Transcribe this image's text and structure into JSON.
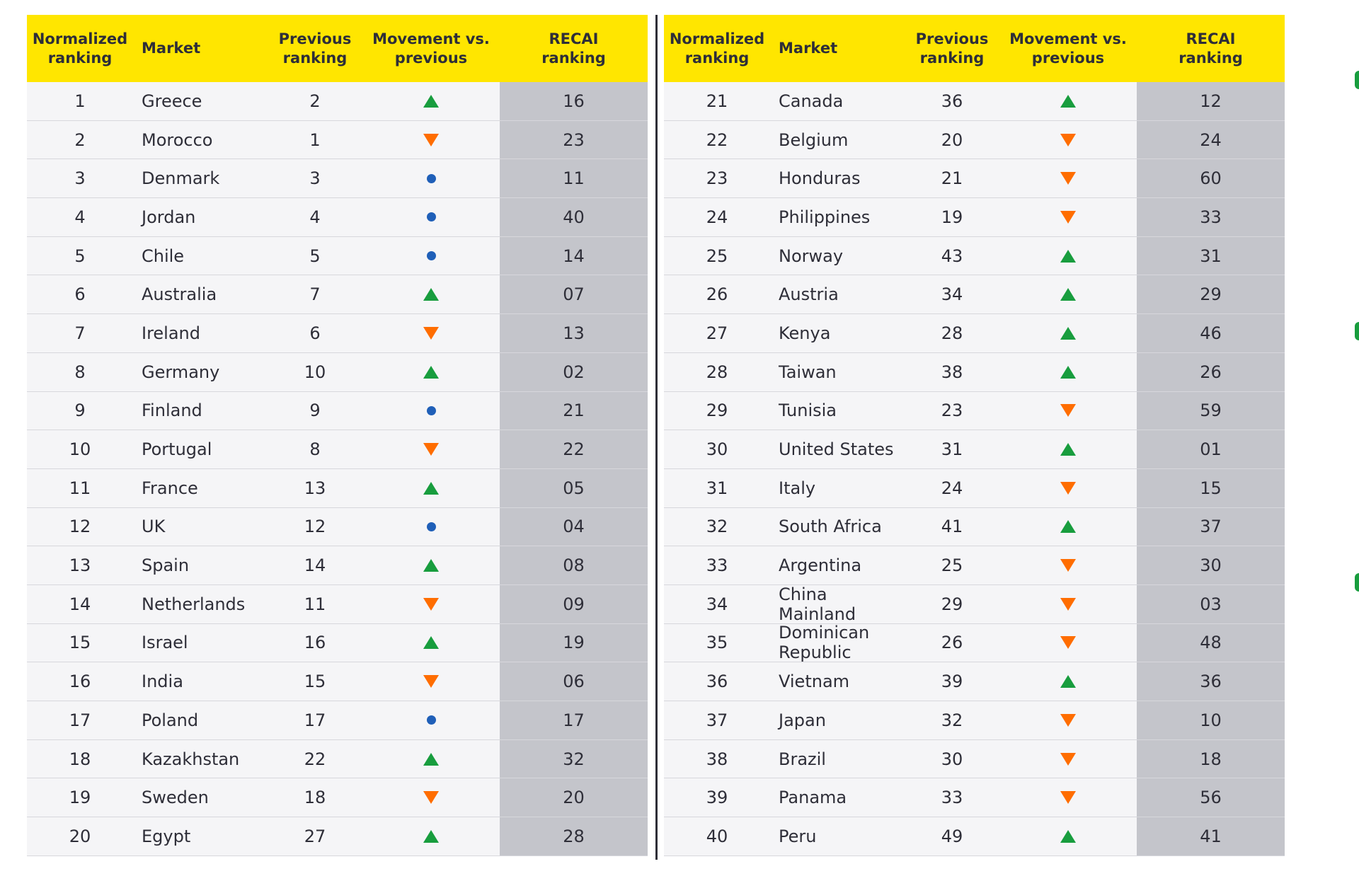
{
  "colors": {
    "header_bg": "#ffe600",
    "up": "#189d3e",
    "down": "#ff6d00",
    "same": "#1f5fb8",
    "recai_bg": "#c4c5cb"
  },
  "headers": {
    "normalized": "Normalized\nranking",
    "market": "Market",
    "previous": "Previous\nranking",
    "movement": "Movement vs.\nprevious",
    "recai": "RECAI\nranking"
  },
  "chart_data": {
    "type": "table",
    "columns": [
      "Normalized ranking",
      "Market",
      "Previous ranking",
      "Movement vs. previous",
      "RECAI ranking"
    ],
    "movement_legend": {
      "up": "triangle-up-icon",
      "down": "triangle-down-icon",
      "same": "dot-icon"
    },
    "rows": [
      {
        "rank": "1",
        "market": "Greece",
        "previous": "2",
        "movement": "up",
        "recai": "16"
      },
      {
        "rank": "2",
        "market": "Morocco",
        "previous": "1",
        "movement": "down",
        "recai": "23"
      },
      {
        "rank": "3",
        "market": "Denmark",
        "previous": "3",
        "movement": "same",
        "recai": "11"
      },
      {
        "rank": "4",
        "market": "Jordan",
        "previous": "4",
        "movement": "same",
        "recai": "40"
      },
      {
        "rank": "5",
        "market": "Chile",
        "previous": "5",
        "movement": "same",
        "recai": "14"
      },
      {
        "rank": "6",
        "market": "Australia",
        "previous": "7",
        "movement": "up",
        "recai": "07"
      },
      {
        "rank": "7",
        "market": "Ireland",
        "previous": "6",
        "movement": "down",
        "recai": "13"
      },
      {
        "rank": "8",
        "market": "Germany",
        "previous": "10",
        "movement": "up",
        "recai": "02"
      },
      {
        "rank": "9",
        "market": "Finland",
        "previous": "9",
        "movement": "same",
        "recai": "21"
      },
      {
        "rank": "10",
        "market": "Portugal",
        "previous": "8",
        "movement": "down",
        "recai": "22"
      },
      {
        "rank": "11",
        "market": "France",
        "previous": "13",
        "movement": "up",
        "recai": "05"
      },
      {
        "rank": "12",
        "market": "UK",
        "previous": "12",
        "movement": "same",
        "recai": "04"
      },
      {
        "rank": "13",
        "market": "Spain",
        "previous": "14",
        "movement": "up",
        "recai": "08"
      },
      {
        "rank": "14",
        "market": "Netherlands",
        "previous": "11",
        "movement": "down",
        "recai": "09"
      },
      {
        "rank": "15",
        "market": "Israel",
        "previous": "16",
        "movement": "up",
        "recai": "19"
      },
      {
        "rank": "16",
        "market": "India",
        "previous": "15",
        "movement": "down",
        "recai": "06"
      },
      {
        "rank": "17",
        "market": "Poland",
        "previous": "17",
        "movement": "same",
        "recai": "17"
      },
      {
        "rank": "18",
        "market": "Kazakhstan",
        "previous": "22",
        "movement": "up",
        "recai": "32"
      },
      {
        "rank": "19",
        "market": "Sweden",
        "previous": "18",
        "movement": "down",
        "recai": "20"
      },
      {
        "rank": "20",
        "market": "Egypt",
        "previous": "27",
        "movement": "up",
        "recai": "28"
      },
      {
        "rank": "21",
        "market": "Canada",
        "previous": "36",
        "movement": "up",
        "recai": "12"
      },
      {
        "rank": "22",
        "market": "Belgium",
        "previous": "20",
        "movement": "down",
        "recai": "24"
      },
      {
        "rank": "23",
        "market": "Honduras",
        "previous": "21",
        "movement": "down",
        "recai": "60"
      },
      {
        "rank": "24",
        "market": "Philippines",
        "previous": "19",
        "movement": "down",
        "recai": "33"
      },
      {
        "rank": "25",
        "market": "Norway",
        "previous": "43",
        "movement": "up",
        "recai": "31"
      },
      {
        "rank": "26",
        "market": "Austria",
        "previous": "34",
        "movement": "up",
        "recai": "29"
      },
      {
        "rank": "27",
        "market": "Kenya",
        "previous": "28",
        "movement": "up",
        "recai": "46"
      },
      {
        "rank": "28",
        "market": "Taiwan",
        "previous": "38",
        "movement": "up",
        "recai": "26"
      },
      {
        "rank": "29",
        "market": "Tunisia",
        "previous": "23",
        "movement": "down",
        "recai": "59"
      },
      {
        "rank": "30",
        "market": "United States",
        "previous": "31",
        "movement": "up",
        "recai": "01"
      },
      {
        "rank": "31",
        "market": "Italy",
        "previous": "24",
        "movement": "down",
        "recai": "15"
      },
      {
        "rank": "32",
        "market": "South Africa",
        "previous": "41",
        "movement": "up",
        "recai": "37"
      },
      {
        "rank": "33",
        "market": "Argentina",
        "previous": "25",
        "movement": "down",
        "recai": "30"
      },
      {
        "rank": "34",
        "market": "China Mainland",
        "previous": "29",
        "movement": "down",
        "recai": "03"
      },
      {
        "rank": "35",
        "market": "Dominican Republic",
        "previous": "26",
        "movement": "down",
        "recai": "48"
      },
      {
        "rank": "36",
        "market": "Vietnam",
        "previous": "39",
        "movement": "up",
        "recai": "36"
      },
      {
        "rank": "37",
        "market": "Japan",
        "previous": "32",
        "movement": "down",
        "recai": "10"
      },
      {
        "rank": "38",
        "market": "Brazil",
        "previous": "30",
        "movement": "down",
        "recai": "18"
      },
      {
        "rank": "39",
        "market": "Panama",
        "previous": "33",
        "movement": "down",
        "recai": "56"
      },
      {
        "rank": "40",
        "market": "Peru",
        "previous": "49",
        "movement": "up",
        "recai": "41"
      }
    ]
  }
}
